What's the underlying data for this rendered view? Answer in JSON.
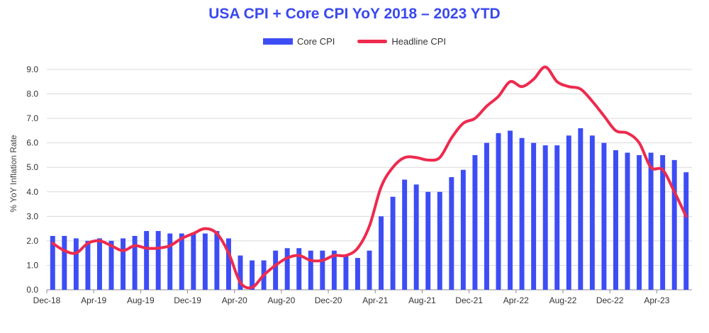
{
  "chart_data": {
    "type": "bar",
    "title": "USA CPI + Core CPI YoY 2018 – 2023 YTD",
    "ylabel": "% YoY Inflation Rate",
    "xlabel": "",
    "ylim": [
      0,
      9
    ],
    "yticks": [
      "0.0",
      "1.0",
      "2.0",
      "3.0",
      "4.0",
      "5.0",
      "6.0",
      "7.0",
      "8.0",
      "9.0"
    ],
    "grid": true,
    "legend_position": "top-center",
    "x_tick_labels": [
      {
        "index": 0,
        "label": "Dec-18"
      },
      {
        "index": 4,
        "label": "Apr-19"
      },
      {
        "index": 8,
        "label": "Aug-19"
      },
      {
        "index": 12,
        "label": "Dec-19"
      },
      {
        "index": 16,
        "label": "Apr-20"
      },
      {
        "index": 20,
        "label": "Aug-20"
      },
      {
        "index": 24,
        "label": "Dec-20"
      },
      {
        "index": 28,
        "label": "Apr-21"
      },
      {
        "index": 32,
        "label": "Aug-21"
      },
      {
        "index": 36,
        "label": "Dec-21"
      },
      {
        "index": 40,
        "label": "Apr-22"
      },
      {
        "index": 44,
        "label": "Aug-22"
      },
      {
        "index": 48,
        "label": "Dec-22"
      },
      {
        "index": 52,
        "label": "Apr-23"
      }
    ],
    "series": [
      {
        "name": "Core CPI",
        "kind": "bar",
        "color": "#3d4df5",
        "values": [
          2.2,
          2.2,
          2.1,
          2.0,
          2.1,
          2.0,
          2.1,
          2.2,
          2.4,
          2.4,
          2.3,
          2.3,
          2.3,
          2.3,
          2.4,
          2.1,
          1.4,
          1.2,
          1.2,
          1.6,
          1.7,
          1.7,
          1.6,
          1.6,
          1.6,
          1.4,
          1.3,
          1.6,
          3.0,
          3.8,
          4.5,
          4.3,
          4.0,
          4.0,
          4.6,
          4.9,
          5.5,
          6.0,
          6.4,
          6.5,
          6.2,
          6.0,
          5.9,
          5.9,
          6.3,
          6.6,
          6.3,
          6.0,
          5.7,
          5.6,
          5.5,
          5.6,
          5.5,
          5.3,
          4.8
        ]
      },
      {
        "name": "Headline CPI",
        "kind": "line",
        "color": "#ee2a4e",
        "values": [
          1.9,
          1.6,
          1.5,
          1.9,
          2.0,
          1.8,
          1.6,
          1.8,
          1.7,
          1.7,
          1.8,
          2.1,
          2.3,
          2.5,
          2.3,
          1.5,
          0.3,
          0.1,
          0.6,
          1.0,
          1.3,
          1.4,
          1.2,
          1.2,
          1.4,
          1.4,
          1.7,
          2.6,
          4.2,
          5.0,
          5.4,
          5.4,
          5.3,
          5.4,
          6.2,
          6.8,
          7.0,
          7.5,
          7.9,
          8.5,
          8.3,
          8.6,
          9.1,
          8.5,
          8.3,
          8.2,
          7.7,
          7.1,
          6.5,
          6.4,
          6.0,
          5.0,
          4.9,
          4.0,
          3.0
        ]
      }
    ]
  }
}
